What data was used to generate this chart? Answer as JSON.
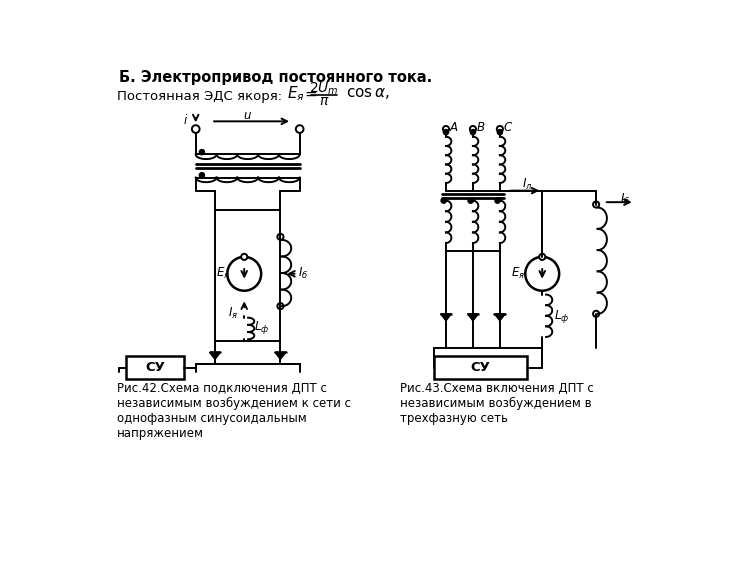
{
  "title": "Б. Электропривод постоянного тока.",
  "caption_left": "Рис.42.Схема подключения ДПТ с\nнезависимым возбуждением к сети с\nоднофазным синусоидальным\nнапряжением",
  "caption_right": "Рис.43.Схема включения ДПТ с\nнезависимым возбуждением в\nтрехфазную сеть",
  "bg_color": "#ffffff",
  "text_color": "#000000"
}
